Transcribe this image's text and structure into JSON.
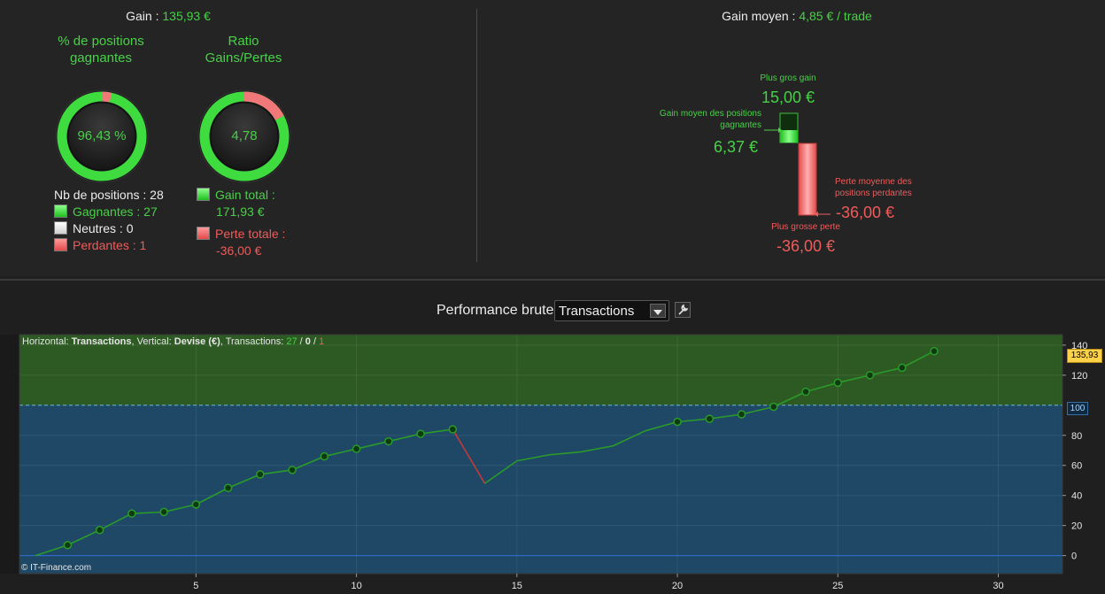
{
  "left": {
    "gain_label": "Gain :",
    "gain_value": "135,93 €",
    "pct_title": "% de positions gagnantes",
    "pct_value": "96,43 %",
    "pct_fraction": 0.9643,
    "ratio_title": "Ratio Gains/Pertes",
    "ratio_value": "4,78",
    "ratio_fraction": 0.827,
    "nb_positions": "Nb de positions : 28",
    "gagnantes": "Gagnantes : 27",
    "neutres": "Neutres : 0",
    "perdantes": "Perdantes : 1",
    "gain_total_label": "Gain total :",
    "gain_total_value": "171,93 €",
    "perte_totale_label": "Perte totale :",
    "perte_totale_value": "-36,00 €"
  },
  "right": {
    "gain_moyen_label": "Gain moyen :",
    "gain_moyen_value": "4,85 € / trade",
    "plus_gros_gain_label": "Plus gros gain",
    "plus_gros_gain_value": "15,00 €",
    "gain_moyen_pos_label_1": "Gain moyen des positions",
    "gain_moyen_pos_label_2": "gagnantes",
    "gain_moyen_pos_value": "6,37 €",
    "perte_moyenne_label_1": "Perte moyenne des",
    "perte_moyenne_label_2": "positions perdantes",
    "perte_moyenne_value": "-36,00 €",
    "plus_grosse_perte_label": "Plus grosse perte",
    "plus_grosse_perte_value": "-36,00 €"
  },
  "performance": {
    "title": "Performance brute",
    "selected": "Transactions",
    "info": {
      "h_label": "Horizontal: ",
      "h_value": "Transactions",
      "v_label": ", Vertical: ",
      "v_value": "Devise (€)",
      "t_label": ", Transactions: ",
      "t_win": "27",
      "sep": " / ",
      "t_neutral": "0",
      "t_loss": "1"
    },
    "copyright": "© IT-Finance.com",
    "last_value_badge": "135,93",
    "reference_badge": "100"
  },
  "colors": {
    "green": "#48d148",
    "red": "#ef5b5b",
    "chart_green_bg": "#2d5a23",
    "chart_blue_bg": "#1e4866",
    "line": "#2a9a2a",
    "loss_line": "#c43a3a"
  },
  "chart_data": {
    "type": "line",
    "x": [
      0,
      1,
      2,
      3,
      4,
      5,
      6,
      7,
      8,
      9,
      10,
      11,
      12,
      13,
      14,
      15,
      16,
      17,
      18,
      19,
      20,
      21,
      22,
      23,
      24,
      25,
      26,
      27,
      28
    ],
    "values": [
      0,
      7,
      17,
      28,
      29,
      34,
      45,
      54,
      57,
      66,
      71,
      76,
      81,
      84,
      48,
      63,
      67,
      69,
      73,
      83,
      89,
      91,
      94,
      99,
      109,
      115,
      120,
      125,
      136
    ],
    "xticks": [
      5,
      10,
      15,
      20,
      25,
      30
    ],
    "yticks": [
      0,
      20,
      40,
      60,
      80,
      100,
      120,
      140
    ],
    "xlim": [
      -0.5,
      32
    ],
    "ylim": [
      -12,
      147
    ],
    "reference_line": 100,
    "loss_segment": [
      13,
      14
    ]
  }
}
